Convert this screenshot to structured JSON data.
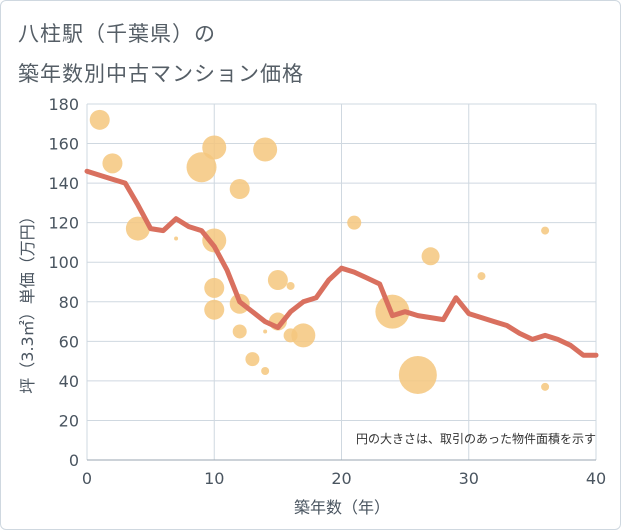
{
  "title": [
    "八柱駅（千葉県）の",
    "築年数別中古マンション価格"
  ],
  "chart_data": {
    "type": "scatter",
    "xlabel": "築年数（年）",
    "ylabel": "坪（3.3㎡）単価（万円）",
    "xlim": [
      0,
      40
    ],
    "ylim": [
      0,
      180
    ],
    "xticks": [
      0,
      10,
      20,
      30,
      40
    ],
    "yticks": [
      0,
      20,
      40,
      60,
      80,
      100,
      120,
      140,
      160,
      180
    ],
    "grid": true,
    "note": "円の大きさは、取引のあった物件面積を示す",
    "colors": {
      "bubble": "#f5c77e",
      "trend": "#d9705f",
      "grid": "#cfd8e0"
    },
    "bubbles": [
      {
        "x": 1,
        "y": 172,
        "r": 10
      },
      {
        "x": 2,
        "y": 150,
        "r": 10
      },
      {
        "x": 4,
        "y": 117,
        "r": 12
      },
      {
        "x": 7,
        "y": 112,
        "r": 2
      },
      {
        "x": 9,
        "y": 148,
        "r": 15
      },
      {
        "x": 10,
        "y": 158,
        "r": 12
      },
      {
        "x": 10,
        "y": 111,
        "r": 12
      },
      {
        "x": 10,
        "y": 87,
        "r": 10
      },
      {
        "x": 10,
        "y": 76,
        "r": 10
      },
      {
        "x": 12,
        "y": 137,
        "r": 10
      },
      {
        "x": 12,
        "y": 79,
        "r": 10
      },
      {
        "x": 12,
        "y": 65,
        "r": 7
      },
      {
        "x": 13,
        "y": 51,
        "r": 7
      },
      {
        "x": 14,
        "y": 157,
        "r": 12
      },
      {
        "x": 14,
        "y": 65,
        "r": 2
      },
      {
        "x": 14,
        "y": 45,
        "r": 4
      },
      {
        "x": 15,
        "y": 91,
        "r": 10
      },
      {
        "x": 15,
        "y": 70,
        "r": 9
      },
      {
        "x": 16,
        "y": 88,
        "r": 4
      },
      {
        "x": 16,
        "y": 63,
        "r": 7
      },
      {
        "x": 17,
        "y": 63,
        "r": 12
      },
      {
        "x": 21,
        "y": 120,
        "r": 7
      },
      {
        "x": 24,
        "y": 75,
        "r": 17
      },
      {
        "x": 26,
        "y": 43,
        "r": 19
      },
      {
        "x": 27,
        "y": 103,
        "r": 9
      },
      {
        "x": 31,
        "y": 93,
        "r": 4
      },
      {
        "x": 36,
        "y": 116,
        "r": 4
      },
      {
        "x": 36,
        "y": 37,
        "r": 4
      }
    ],
    "trend": {
      "x": [
        0,
        1,
        2,
        3,
        4,
        5,
        6,
        7,
        8,
        9,
        10,
        11,
        12,
        13,
        14,
        15,
        16,
        17,
        18,
        19,
        20,
        21,
        22,
        23,
        24,
        25,
        26,
        27,
        28,
        29,
        30,
        31,
        32,
        33,
        34,
        35,
        36,
        37,
        38,
        39,
        40
      ],
      "y": [
        146,
        144,
        142,
        140,
        129,
        117,
        116,
        122,
        118,
        116,
        108,
        96,
        80,
        75,
        70,
        67,
        75,
        80,
        82,
        91,
        97,
        95,
        92,
        89,
        73,
        75,
        73,
        72,
        71,
        82,
        74,
        72,
        70,
        68,
        64,
        61,
        63,
        61,
        58,
        53,
        53
      ]
    }
  }
}
